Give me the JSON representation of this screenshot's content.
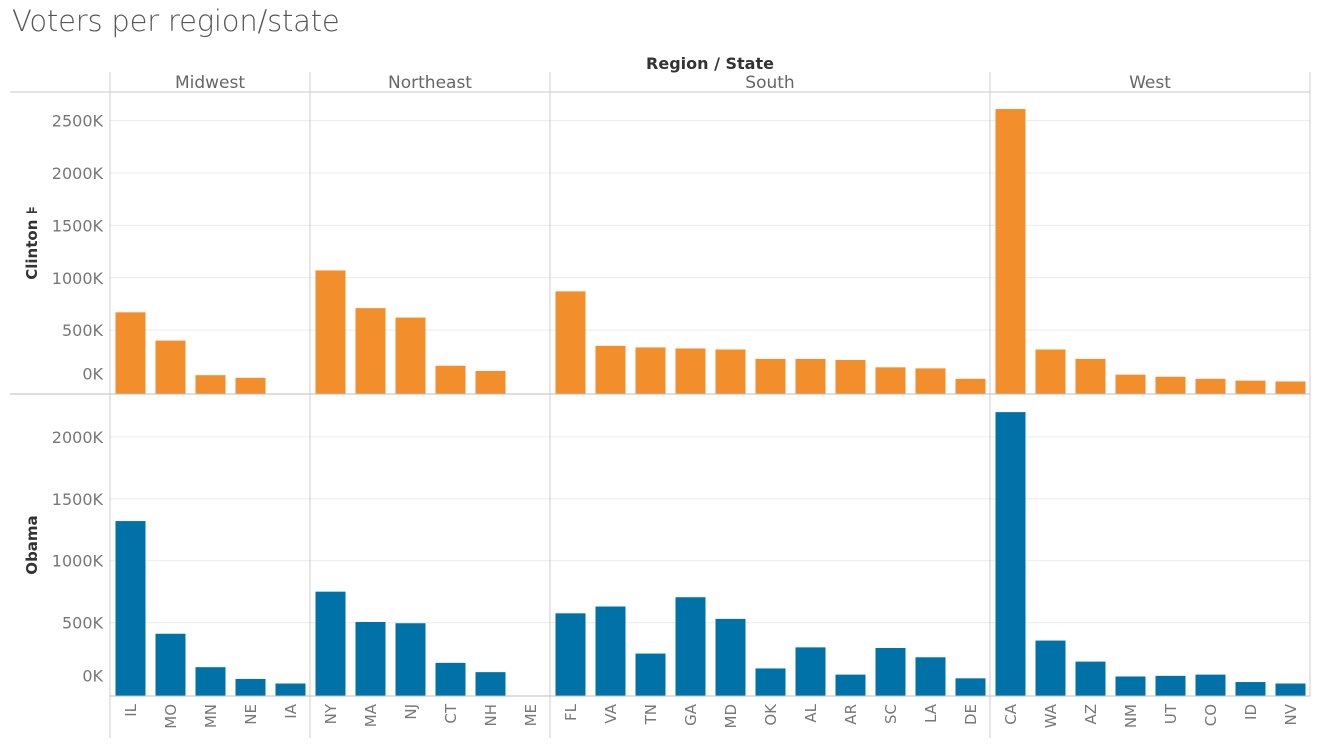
{
  "title": "Voters per region/state",
  "chart_data": {
    "type": "bar",
    "title": "Voters per region/state",
    "column_header": "Region / State",
    "regions": [
      {
        "name": "Midwest",
        "states": [
          "IL",
          "MO",
          "MN",
          "NE",
          "IA"
        ]
      },
      {
        "name": "Northeast",
        "states": [
          "NY",
          "MA",
          "NJ",
          "CT",
          "NH",
          "ME"
        ]
      },
      {
        "name": "South",
        "states": [
          "FL",
          "VA",
          "TN",
          "GA",
          "MD",
          "OK",
          "AL",
          "AR",
          "SC",
          "LA",
          "DE"
        ]
      },
      {
        "name": "West",
        "states": [
          "CA",
          "WA",
          "AZ",
          "NM",
          "UT",
          "CO",
          "ID",
          "NV"
        ]
      }
    ],
    "series": [
      {
        "name": "Clinton",
        "row_label": "Clinton ⊧",
        "color": "#f28e2b",
        "ylim": [
          0,
          2600000
        ],
        "ticks": [
          0,
          500000,
          1000000,
          1500000,
          2000000,
          2500000
        ],
        "tick_labels": [
          "0K",
          "500K",
          "1000K",
          "1500K",
          "2000K",
          "2500K"
        ],
        "values": {
          "IL": 670000,
          "MO": 400000,
          "MN": 70000,
          "NE": 45000,
          "IA": 0,
          "NY": 1070000,
          "MA": 710000,
          "NJ": 620000,
          "CT": 160000,
          "NH": 110000,
          "ME": 0,
          "FL": 870000,
          "VA": 350000,
          "TN": 335000,
          "GA": 325000,
          "MD": 315000,
          "OK": 225000,
          "AL": 225000,
          "AR": 215000,
          "SC": 145000,
          "LA": 135000,
          "DE": 35000,
          "CA": 2610000,
          "WA": 315000,
          "AZ": 225000,
          "NM": 75000,
          "UT": 55000,
          "CO": 35000,
          "ID": 18000,
          "NV": 10000
        }
      },
      {
        "name": "Obama",
        "row_label": "Obama",
        "color": "#0072a8",
        "ylim": [
          0,
          2200000
        ],
        "ticks": [
          0,
          500000,
          1000000,
          1500000,
          2000000
        ],
        "tick_labels": [
          "0K",
          "500K",
          "1000K",
          "1500K",
          "2000K"
        ],
        "values": {
          "IL": 1320000,
          "MO": 410000,
          "MN": 140000,
          "NE": 45000,
          "IA": 8000,
          "NY": 750000,
          "MA": 505000,
          "NJ": 495000,
          "CT": 175000,
          "NH": 100000,
          "ME": 0,
          "FL": 575000,
          "VA": 630000,
          "TN": 250000,
          "GA": 705000,
          "MD": 530000,
          "OK": 130000,
          "AL": 300000,
          "AR": 80000,
          "SC": 295000,
          "LA": 220000,
          "DE": 50000,
          "CA": 2200000,
          "WA": 355000,
          "AZ": 185000,
          "NM": 65000,
          "UT": 70000,
          "CO": 80000,
          "ID": 20000,
          "NV": 8000
        }
      }
    ],
    "grid": true,
    "legend": "none"
  }
}
